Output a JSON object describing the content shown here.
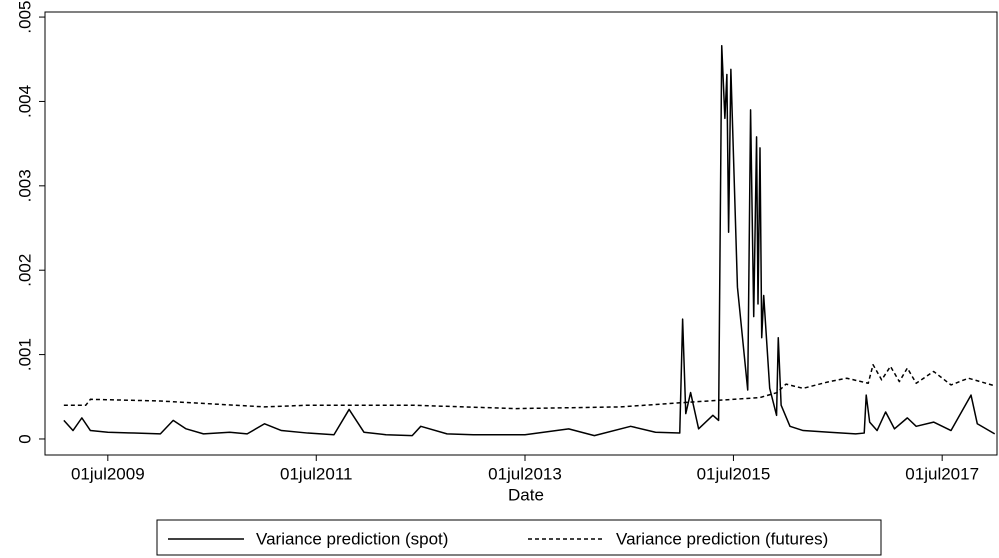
{
  "chart_data": {
    "type": "line",
    "x_label": "Date",
    "xlim": [
      "2008-11-23",
      "2018-01-09"
    ],
    "xticks": [
      {
        "value": "2009-07-01",
        "label": "01jul2009"
      },
      {
        "value": "2011-07-01",
        "label": "01jul2011"
      },
      {
        "value": "2013-07-01",
        "label": "01jul2013"
      },
      {
        "value": "2015-07-01",
        "label": "01jul2015"
      },
      {
        "value": "2017-07-01",
        "label": "01jul2017"
      }
    ],
    "ylim": [
      -0.00019,
      0.00506
    ],
    "yticks": [
      0,
      {
        "value": 0.001,
        "label": ".001"
      },
      {
        "value": 0.002,
        "label": ".002"
      },
      {
        "value": 0.003,
        "label": ".003"
      },
      {
        "value": 0.004,
        "label": ".004"
      },
      {
        "value": 0.005,
        "label": ".005"
      }
    ],
    "series": [
      {
        "name": "Variance prediction (spot)",
        "color": "#000000",
        "dash": "solid",
        "x": [
          "2009-01-28",
          "2009-03-01",
          "2009-04-01",
          "2009-05-01",
          "2009-07-01",
          "2009-10-01",
          "2010-01-01",
          "2010-02-15",
          "2010-04-01",
          "2010-06-01",
          "2010-09-01",
          "2010-11-01",
          "2011-01-01",
          "2011-03-01",
          "2011-06-01",
          "2011-09-01",
          "2011-10-24",
          "2011-12-15",
          "2012-03-01",
          "2012-06-01",
          "2012-07-01",
          "2012-10-01",
          "2013-01-01",
          "2013-07-01",
          "2013-12-01",
          "2014-03-01",
          "2014-07-06",
          "2014-10-01",
          "2014-12-25",
          "2015-01-04",
          "2015-01-15",
          "2015-02-01",
          "2015-03-01",
          "2015-04-20",
          "2015-05-10",
          "2015-05-21",
          "2015-06-01",
          "2015-06-08",
          "2015-06-14",
          "2015-06-22",
          "2015-07-15",
          "2015-08-20",
          "2015-08-30",
          "2015-09-10",
          "2015-09-20",
          "2015-09-25",
          "2015-10-02",
          "2015-10-08",
          "2015-10-15",
          "2015-11-05",
          "2015-11-29",
          "2015-12-05",
          "2015-12-15",
          "2016-01-15",
          "2016-03-01",
          "2016-06-01",
          "2016-09-01",
          "2016-10-01",
          "2016-10-08",
          "2016-10-20",
          "2016-11-15",
          "2016-12-15",
          "2017-01-15",
          "2017-03-01",
          "2017-04-01",
          "2017-06-01",
          "2017-08-01",
          "2017-10-10",
          "2017-11-01",
          "2018-01-01"
        ],
        "values": [
          0.00022,
          0.0001,
          0.00025,
          0.0001,
          8e-05,
          7e-05,
          6e-05,
          0.00022,
          0.00012,
          6e-05,
          8e-05,
          6e-05,
          0.00018,
          0.0001,
          7e-05,
          5e-05,
          0.00035,
          8e-05,
          5e-05,
          4e-05,
          0.00015,
          6e-05,
          5e-05,
          5e-05,
          0.00012,
          4e-05,
          0.00015,
          8e-05,
          7e-05,
          0.00142,
          0.0003,
          0.00055,
          0.00012,
          0.00028,
          0.00022,
          0.00466,
          0.0038,
          0.00432,
          0.00245,
          0.00438,
          0.0018,
          0.00058,
          0.0039,
          0.00145,
          0.00358,
          0.0016,
          0.00345,
          0.0012,
          0.0017,
          0.0006,
          0.00028,
          0.0012,
          0.0004,
          0.00015,
          0.0001,
          8e-05,
          6e-05,
          7e-05,
          0.00052,
          0.0002,
          0.0001,
          0.00032,
          0.00012,
          0.00025,
          0.00015,
          0.0002,
          0.0001,
          0.00052,
          0.00018,
          6e-05
        ]
      },
      {
        "name": "Variance prediction (futures)",
        "color": "#000000",
        "dash": "dashed",
        "x": [
          "2009-01-28",
          "2009-04-15",
          "2009-05-01",
          "2010-01-01",
          "2011-01-01",
          "2011-06-01",
          "2012-06-01",
          "2013-06-01",
          "2014-06-01",
          "2015-01-01",
          "2015-10-01",
          "2015-12-01",
          "2016-01-01",
          "2016-03-01",
          "2016-06-01",
          "2016-08-01",
          "2016-10-15",
          "2016-11-01",
          "2016-12-01",
          "2017-01-01",
          "2017-02-01",
          "2017-03-01",
          "2017-04-01",
          "2017-06-01",
          "2017-08-01",
          "2017-10-01",
          "2018-01-01"
        ],
        "values": [
          0.0004,
          0.0004,
          0.00047,
          0.00045,
          0.00038,
          0.0004,
          0.0004,
          0.00036,
          0.00038,
          0.00043,
          0.00049,
          0.00055,
          0.00065,
          0.0006,
          0.00068,
          0.00072,
          0.00066,
          0.00088,
          0.0007,
          0.00086,
          0.00068,
          0.00084,
          0.00066,
          0.0008,
          0.00064,
          0.00072,
          0.00063
        ]
      }
    ]
  }
}
